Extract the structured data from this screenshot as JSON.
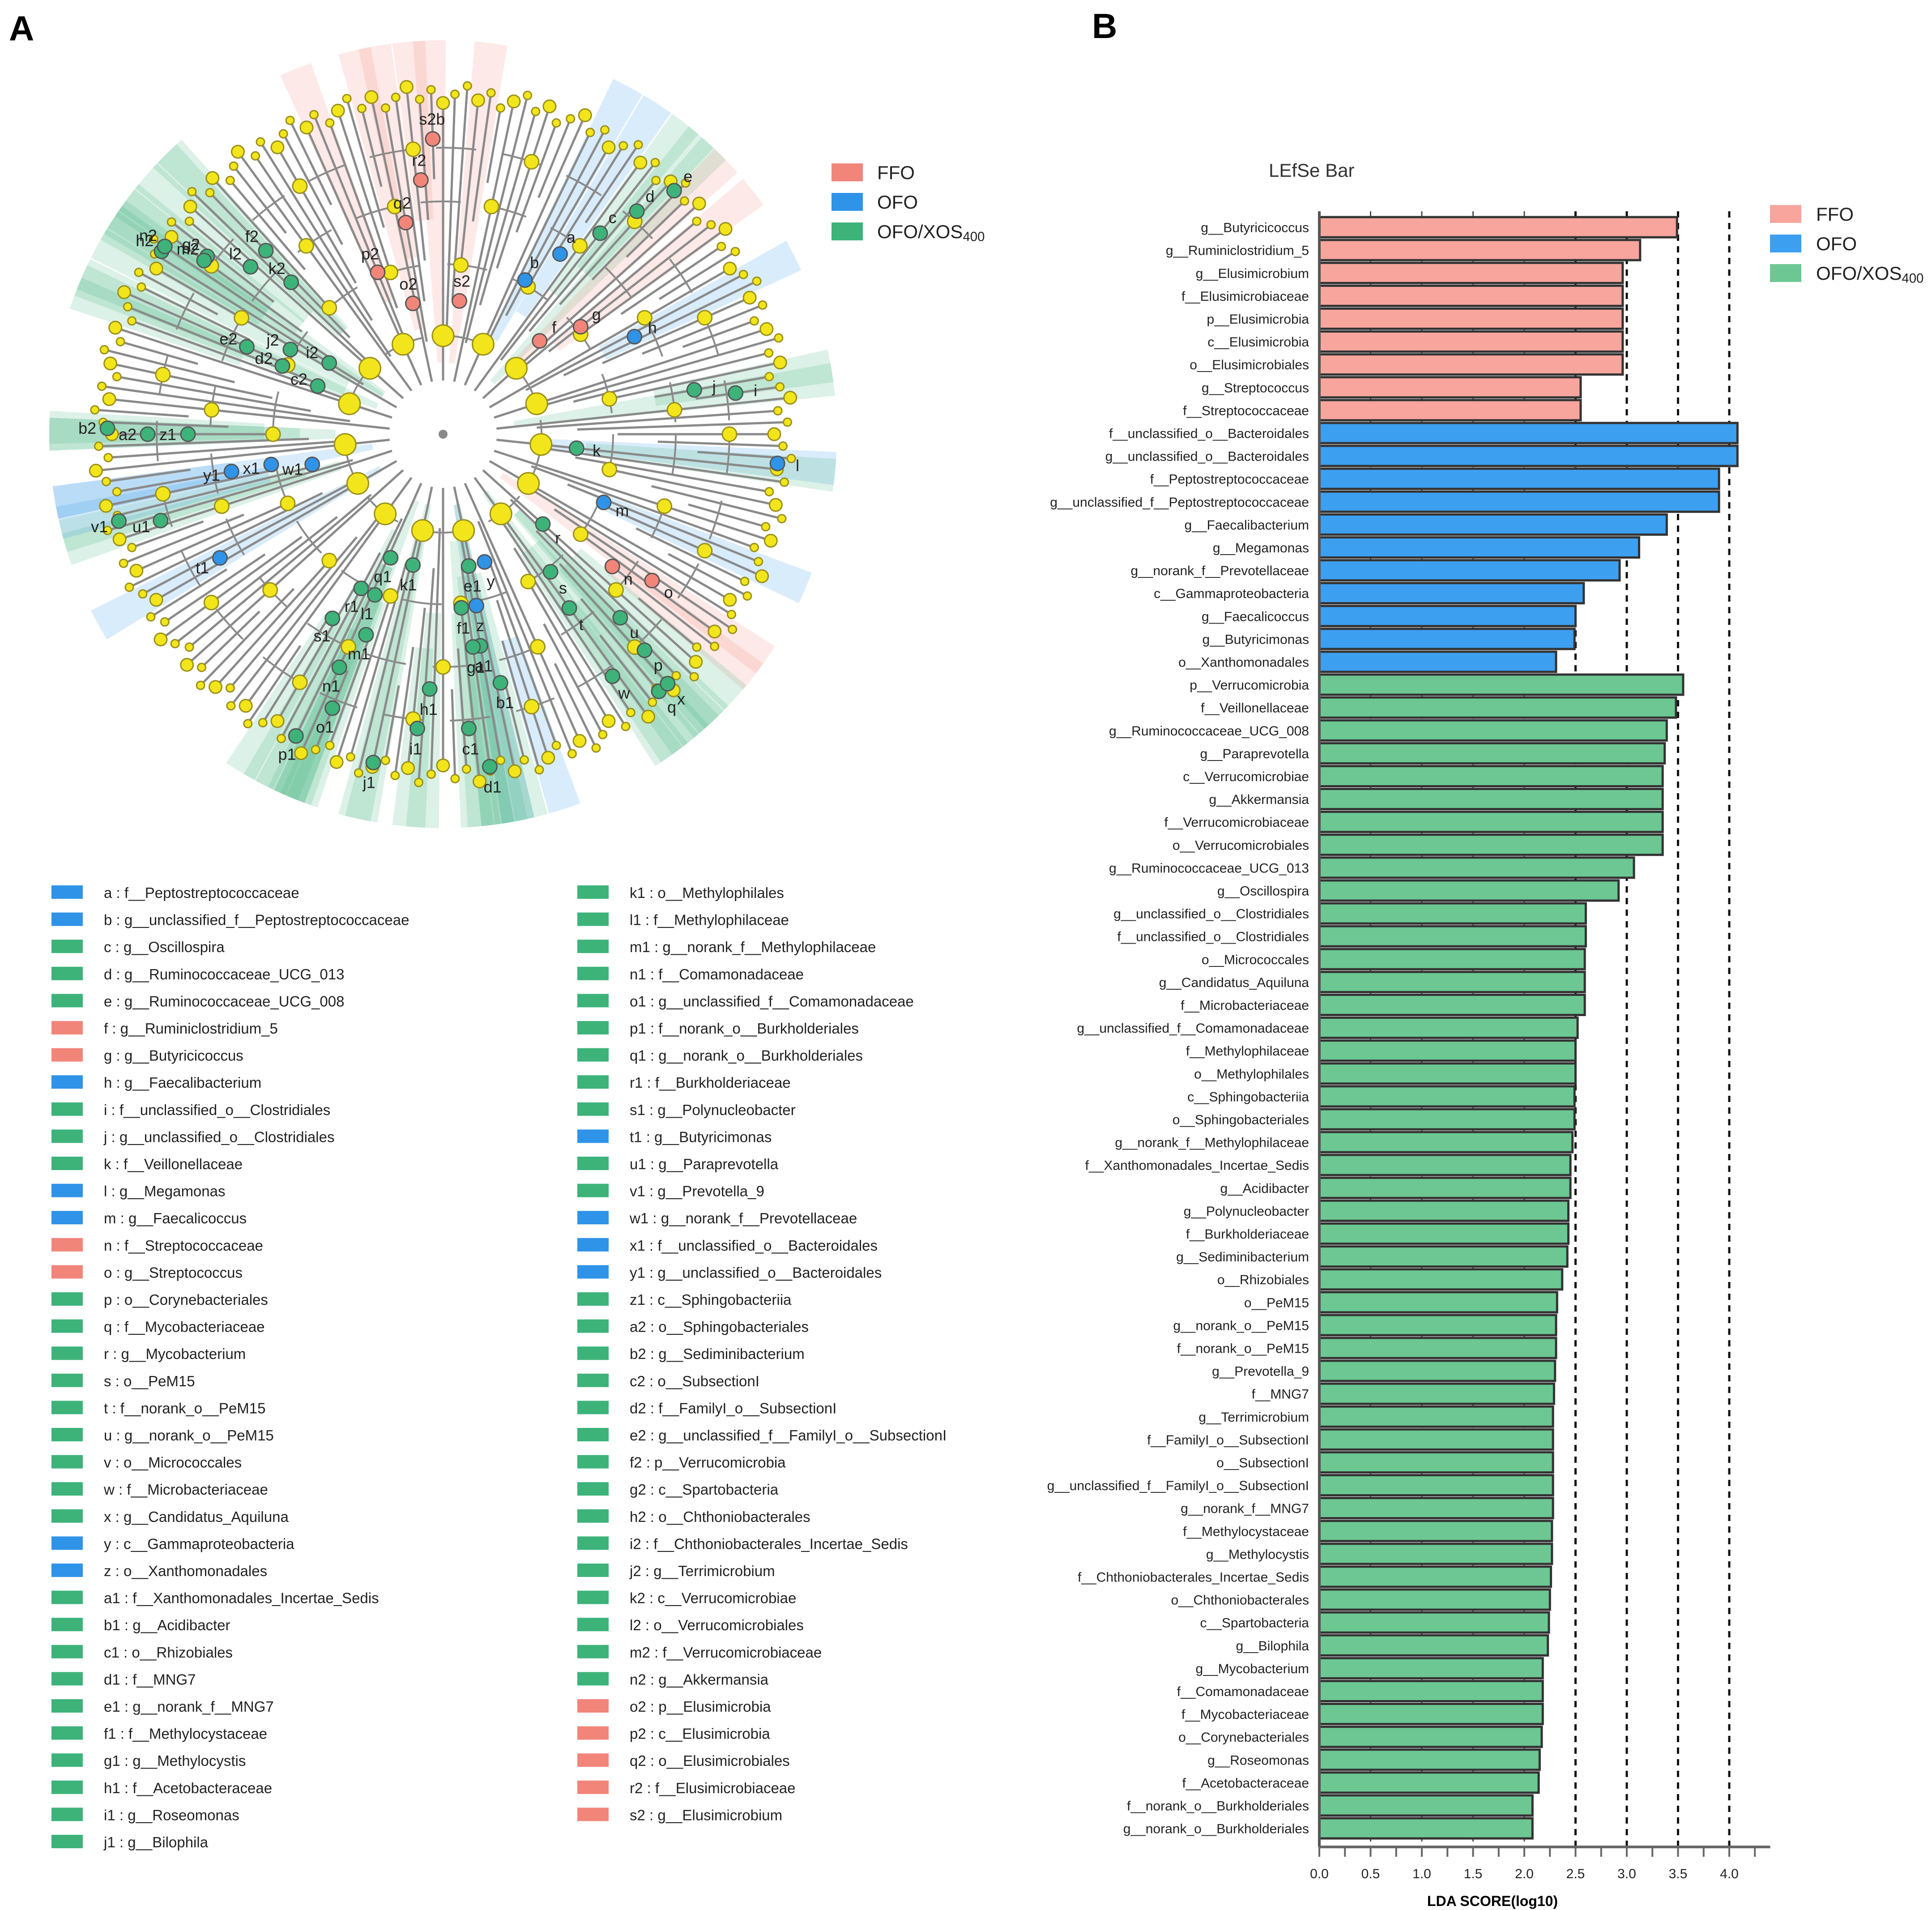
{
  "panels": {
    "a_label": "A",
    "b_label": "B"
  },
  "colors": {
    "FFO": "#f2857a",
    "OFO": "#2f93e8",
    "OFO/XOS400": "#3db37a",
    "bar_FFO": "#f7a59d",
    "bar_OFO": "#3d9ff0",
    "bar_XOS": "#6cc793",
    "node": "#f2e51b",
    "branch": "#8a8a8a"
  },
  "cladogram_legend": [
    {
      "label": "FFO",
      "group": "FFO"
    },
    {
      "label": "OFO",
      "group": "OFO"
    },
    {
      "label": "OFO/XOS",
      "sub": "400",
      "group": "OFO/XOS400"
    }
  ],
  "cladogram_clades": [
    {
      "id": "s2",
      "group": "FFO",
      "angle": -83
    },
    {
      "id": "b",
      "group": "OFO",
      "angle": -62
    },
    {
      "id": "a",
      "group": "OFO",
      "angle": -57
    },
    {
      "id": "c",
      "group": "OFO/XOS400",
      "angle": -52
    },
    {
      "id": "d",
      "group": "OFO/XOS400",
      "angle": -49
    },
    {
      "id": "e",
      "group": "OFO/XOS400",
      "angle": -46.5
    },
    {
      "id": "f",
      "group": "FFO",
      "angle": -44
    },
    {
      "id": "g",
      "group": "FFO",
      "angle": -38
    },
    {
      "id": "h",
      "group": "OFO",
      "angle": -27
    },
    {
      "id": "j",
      "group": "OFO/XOS400",
      "angle": -10
    },
    {
      "id": "i",
      "group": "OFO/XOS400",
      "angle": -8
    },
    {
      "id": "l",
      "group": "OFO",
      "angle": 5
    },
    {
      "id": "k",
      "group": "OFO/XOS400",
      "angle": 6
    },
    {
      "id": "m",
      "group": "OFO",
      "angle": 23
    },
    {
      "id": "n",
      "group": "FFO",
      "angle": 38
    },
    {
      "id": "o",
      "group": "FFO",
      "angle": 35
    },
    {
      "id": "p",
      "group": "OFO/XOS400",
      "angle": 47
    },
    {
      "id": "q",
      "group": "OFO/XOS400",
      "angle": 50
    },
    {
      "id": "r",
      "group": "OFO/XOS400",
      "angle": 42
    },
    {
      "id": "s",
      "group": "OFO/XOS400",
      "angle": 52
    },
    {
      "id": "t",
      "group": "OFO/XOS400",
      "angle": 54
    },
    {
      "id": "u",
      "group": "OFO/XOS400",
      "angle": 46
    },
    {
      "id": "w",
      "group": "OFO/XOS400",
      "angle": 55
    },
    {
      "id": "x",
      "group": "OFO/XOS400",
      "angle": 48
    },
    {
      "id": "y",
      "group": "OFO",
      "angle": 72
    },
    {
      "id": "z",
      "group": "OFO",
      "angle": 79
    },
    {
      "id": "a1",
      "group": "OFO/XOS400",
      "angle": 80
    },
    {
      "id": "b1",
      "group": "OFO/XOS400",
      "angle": 77
    },
    {
      "id": "c1",
      "group": "OFO/XOS400",
      "angle": 85
    },
    {
      "id": "d1",
      "group": "OFO/XOS400",
      "angle": 82
    },
    {
      "id": "e1",
      "group": "OFO/XOS400",
      "angle": 79
    },
    {
      "id": "f1",
      "group": "OFO/XOS400",
      "angle": 84
    },
    {
      "id": "g1",
      "group": "OFO/XOS400",
      "angle": 82
    },
    {
      "id": "h1",
      "group": "OFO/XOS400",
      "angle": 93
    },
    {
      "id": "i1",
      "group": "OFO/XOS400",
      "angle": 95
    },
    {
      "id": "j1",
      "group": "OFO/XOS400",
      "angle": 102
    },
    {
      "id": "k1",
      "group": "OFO/XOS400",
      "angle": 103
    },
    {
      "id": "l1",
      "group": "OFO/XOS400",
      "angle": 113
    },
    {
      "id": "m1",
      "group": "OFO/XOS400",
      "angle": 111
    },
    {
      "id": "n1",
      "group": "OFO/XOS400",
      "angle": 114
    },
    {
      "id": "o1",
      "group": "OFO/XOS400",
      "angle": 112
    },
    {
      "id": "p1",
      "group": "OFO/XOS400",
      "angle": 116
    },
    {
      "id": "q1",
      "group": "OFO/XOS400",
      "angle": 113
    },
    {
      "id": "r1",
      "group": "OFO/XOS400",
      "angle": 118
    },
    {
      "id": "s1",
      "group": "OFO/XOS400",
      "angle": 121
    },
    {
      "id": "t1",
      "group": "OFO",
      "angle": 151
    },
    {
      "id": "u1",
      "group": "OFO/XOS400",
      "angle": 163
    },
    {
      "id": "v1",
      "group": "OFO/XOS400",
      "angle": 165
    },
    {
      "id": "w1",
      "group": "OFO",
      "angle": 167
    },
    {
      "id": "x1",
      "group": "OFO",
      "angle": 170
    },
    {
      "id": "y1",
      "group": "OFO",
      "angle": 170
    },
    {
      "id": "z1",
      "group": "OFO/XOS400",
      "angle": 180
    },
    {
      "id": "a2",
      "group": "OFO/XOS400",
      "angle": 180
    },
    {
      "id": "b2",
      "group": "OFO/XOS400",
      "angle": 181
    },
    {
      "id": "c2",
      "group": "OFO/XOS400",
      "angle": -159
    },
    {
      "id": "d2",
      "group": "OFO/XOS400",
      "angle": -157
    },
    {
      "id": "e2",
      "group": "OFO/XOS400",
      "angle": -156
    },
    {
      "id": "f2",
      "group": "OFO/XOS400",
      "angle": -134
    },
    {
      "id": "g2",
      "group": "OFO/XOS400",
      "angle": -143
    },
    {
      "id": "h2",
      "group": "OFO/XOS400",
      "angle": -147
    },
    {
      "id": "i2",
      "group": "OFO/XOS400",
      "angle": -148
    },
    {
      "id": "j2",
      "group": "OFO/XOS400",
      "angle": -151
    },
    {
      "id": "k2",
      "group": "OFO/XOS400",
      "angle": -135
    },
    {
      "id": "l2",
      "group": "OFO/XOS400",
      "angle": -139
    },
    {
      "id": "m2",
      "group": "OFO/XOS400",
      "angle": -144
    },
    {
      "id": "n2",
      "group": "OFO/XOS400",
      "angle": -146
    },
    {
      "id": "o2",
      "group": "FFO",
      "angle": -103
    },
    {
      "id": "p2",
      "group": "FFO",
      "angle": -112
    },
    {
      "id": "q2",
      "group": "FFO",
      "angle": -100
    },
    {
      "id": "r2",
      "group": "FFO",
      "angle": -95
    },
    {
      "id": "s2b",
      "group": "FFO",
      "angle": -92
    }
  ],
  "clade_key": [
    {
      "text": "a : f__Peptostreptococcaceae",
      "group": "OFO"
    },
    {
      "text": "b : g__unclassified_f__Peptostreptococcaceae",
      "group": "OFO"
    },
    {
      "text": "c : g__Oscillospira",
      "group": "OFO/XOS400"
    },
    {
      "text": "d : g__Ruminococcaceae_UCG_013",
      "group": "OFO/XOS400"
    },
    {
      "text": "e : g__Ruminococcaceae_UCG_008",
      "group": "OFO/XOS400"
    },
    {
      "text": "f : g__Ruminiclostridium_5",
      "group": "FFO"
    },
    {
      "text": "g : g__Butyricicoccus",
      "group": "FFO"
    },
    {
      "text": "h : g__Faecalibacterium",
      "group": "OFO"
    },
    {
      "text": "i : f__unclassified_o__Clostridiales",
      "group": "OFO/XOS400"
    },
    {
      "text": "j : g__unclassified_o__Clostridiales",
      "group": "OFO/XOS400"
    },
    {
      "text": "k : f__Veillonellaceae",
      "group": "OFO/XOS400"
    },
    {
      "text": "l : g__Megamonas",
      "group": "OFO"
    },
    {
      "text": "m : g__Faecalicoccus",
      "group": "OFO"
    },
    {
      "text": "n : f__Streptococcaceae",
      "group": "FFO"
    },
    {
      "text": "o : g__Streptococcus",
      "group": "FFO"
    },
    {
      "text": "p : o__Corynebacteriales",
      "group": "OFO/XOS400"
    },
    {
      "text": "q : f__Mycobacteriaceae",
      "group": "OFO/XOS400"
    },
    {
      "text": "r : g__Mycobacterium",
      "group": "OFO/XOS400"
    },
    {
      "text": "s : o__PeM15",
      "group": "OFO/XOS400"
    },
    {
      "text": "t : f__norank_o__PeM15",
      "group": "OFO/XOS400"
    },
    {
      "text": "u : g__norank_o__PeM15",
      "group": "OFO/XOS400"
    },
    {
      "text": "v : o__Micrococcales",
      "group": "OFO/XOS400"
    },
    {
      "text": "w : f__Microbacteriaceae",
      "group": "OFO/XOS400"
    },
    {
      "text": "x : g__Candidatus_Aquiluna",
      "group": "OFO/XOS400"
    },
    {
      "text": "y : c__Gammaproteobacteria",
      "group": "OFO"
    },
    {
      "text": "z : o__Xanthomonadales",
      "group": "OFO"
    },
    {
      "text": "a1 : f__Xanthomonadales_Incertae_Sedis",
      "group": "OFO/XOS400"
    },
    {
      "text": "b1 : g__Acidibacter",
      "group": "OFO/XOS400"
    },
    {
      "text": "c1 : o__Rhizobiales",
      "group": "OFO/XOS400"
    },
    {
      "text": "d1 : f__MNG7",
      "group": "OFO/XOS400"
    },
    {
      "text": "e1 : g__norank_f__MNG7",
      "group": "OFO/XOS400"
    },
    {
      "text": "f1 : f__Methylocystaceae",
      "group": "OFO/XOS400"
    },
    {
      "text": "g1 : g__Methylocystis",
      "group": "OFO/XOS400"
    },
    {
      "text": "h1 : f__Acetobacteraceae",
      "group": "OFO/XOS400"
    },
    {
      "text": "i1 : g__Roseomonas",
      "group": "OFO/XOS400"
    },
    {
      "text": "j1 : g__Bilophila",
      "group": "OFO/XOS400"
    },
    {
      "text": "k1 : o__Methylophilales",
      "group": "OFO/XOS400"
    },
    {
      "text": "l1 : f__Methylophilaceae",
      "group": "OFO/XOS400"
    },
    {
      "text": "m1 : g__norank_f__Methylophilaceae",
      "group": "OFO/XOS400"
    },
    {
      "text": "n1 : f__Comamonadaceae",
      "group": "OFO/XOS400"
    },
    {
      "text": "o1 : g__unclassified_f__Comamonadaceae",
      "group": "OFO/XOS400"
    },
    {
      "text": "p1 : f__norank_o__Burkholderiales",
      "group": "OFO/XOS400"
    },
    {
      "text": "q1 : g__norank_o__Burkholderiales",
      "group": "OFO/XOS400"
    },
    {
      "text": "r1 : f__Burkholderiaceae",
      "group": "OFO/XOS400"
    },
    {
      "text": "s1 : g__Polynucleobacter",
      "group": "OFO/XOS400"
    },
    {
      "text": "t1 : g__Butyricimonas",
      "group": "OFO"
    },
    {
      "text": "u1 : g__Paraprevotella",
      "group": "OFO/XOS400"
    },
    {
      "text": "v1 : g__Prevotella_9",
      "group": "OFO/XOS400"
    },
    {
      "text": "w1 : g__norank_f__Prevotellaceae",
      "group": "OFO"
    },
    {
      "text": "x1 : f__unclassified_o__Bacteroidales",
      "group": "OFO"
    },
    {
      "text": "y1 : g__unclassified_o__Bacteroidales",
      "group": "OFO"
    },
    {
      "text": "z1 : c__Sphingobacteriia",
      "group": "OFO/XOS400"
    },
    {
      "text": "a2 : o__Sphingobacteriales",
      "group": "OFO/XOS400"
    },
    {
      "text": "b2 : g__Sediminibacterium",
      "group": "OFO/XOS400"
    },
    {
      "text": "c2 : o__SubsectionI",
      "group": "OFO/XOS400"
    },
    {
      "text": "d2 : f__FamilyI_o__SubsectionI",
      "group": "OFO/XOS400"
    },
    {
      "text": "e2 : g__unclassified_f__FamilyI_o__SubsectionI",
      "group": "OFO/XOS400"
    },
    {
      "text": "f2 : p__Verrucomicrobia",
      "group": "OFO/XOS400"
    },
    {
      "text": "g2 : c__Spartobacteria",
      "group": "OFO/XOS400"
    },
    {
      "text": "h2 : o__Chthoniobacterales",
      "group": "OFO/XOS400"
    },
    {
      "text": "i2 : f__Chthoniobacterales_Incertae_Sedis",
      "group": "OFO/XOS400"
    },
    {
      "text": "j2 : g__Terrimicrobium",
      "group": "OFO/XOS400"
    },
    {
      "text": "k2 : c__Verrucomicrobiae",
      "group": "OFO/XOS400"
    },
    {
      "text": "l2 : o__Verrucomicrobiales",
      "group": "OFO/XOS400"
    },
    {
      "text": "m2 : f__Verrucomicrobiaceae",
      "group": "OFO/XOS400"
    },
    {
      "text": "n2 : g__Akkermansia",
      "group": "OFO/XOS400"
    },
    {
      "text": "o2 : p__Elusimicrobia",
      "group": "FFO"
    },
    {
      "text": "p2 : c__Elusimicrobia",
      "group": "FFO"
    },
    {
      "text": "q2 : o__Elusimicrobiales",
      "group": "FFO"
    },
    {
      "text": "r2 : f__Elusimicrobiaceae",
      "group": "FFO"
    },
    {
      "text": "s2 : g__Elusimicrobium",
      "group": "FFO"
    }
  ],
  "chart_data": {
    "type": "bar",
    "orientation": "horizontal",
    "title": "LEfSe Bar",
    "xlabel": "LDA SCORE(log10)",
    "xlim": [
      0,
      4.4
    ],
    "xticks": [
      "0.0",
      "0.5",
      "1.0",
      "1.5",
      "2.0",
      "2.5",
      "3.0",
      "3.5",
      "4.0"
    ],
    "xtick_values": [
      0,
      0.5,
      1,
      1.5,
      2,
      2.5,
      3,
      3.5,
      4
    ],
    "dashed_gridlines": [
      0.5,
      1,
      1.5,
      2,
      2.5,
      3,
      3.5,
      4
    ],
    "legend": [
      {
        "label": "FFO",
        "group": "FFO"
      },
      {
        "label": "OFO",
        "group": "OFO"
      },
      {
        "label": "OFO/XOS",
        "sub": "400",
        "group": "OFO/XOS400"
      }
    ],
    "series": [
      {
        "name": "FFO",
        "bars": [
          {
            "label": "g__Butyricicoccus",
            "value": 3.49
          },
          {
            "label": "g__Ruminiclostridium_5",
            "value": 3.13
          },
          {
            "label": "g__Elusimicrobium",
            "value": 2.96
          },
          {
            "label": "f__Elusimicrobiaceae",
            "value": 2.96
          },
          {
            "label": "p__Elusimicrobia",
            "value": 2.96
          },
          {
            "label": "c__Elusimicrobia",
            "value": 2.96
          },
          {
            "label": "o__Elusimicrobiales",
            "value": 2.96
          },
          {
            "label": "g__Streptococcus",
            "value": 2.55
          },
          {
            "label": "f__Streptococcaceae",
            "value": 2.55
          }
        ]
      },
      {
        "name": "OFO",
        "bars": [
          {
            "label": "f__unclassified_o__Bacteroidales",
            "value": 4.08
          },
          {
            "label": "g__unclassified_o__Bacteroidales",
            "value": 4.08
          },
          {
            "label": "f__Peptostreptococcaceae",
            "value": 3.9
          },
          {
            "label": "g__unclassified_f__Peptostreptococcaceae",
            "value": 3.9
          },
          {
            "label": "g__Faecalibacterium",
            "value": 3.39
          },
          {
            "label": "g__Megamonas",
            "value": 3.12
          },
          {
            "label": "g__norank_f__Prevotellaceae",
            "value": 2.93
          },
          {
            "label": "c__Gammaproteobacteria",
            "value": 2.58
          },
          {
            "label": "g__Faecalicoccus",
            "value": 2.5
          },
          {
            "label": "g__Butyricimonas",
            "value": 2.49
          },
          {
            "label": "o__Xanthomonadales",
            "value": 2.31
          }
        ]
      },
      {
        "name": "OFO/XOS400",
        "bars": [
          {
            "label": "p__Verrucomicrobia",
            "value": 3.55
          },
          {
            "label": "f__Veillonellaceae",
            "value": 3.48
          },
          {
            "label": "g__Ruminococcaceae_UCG_008",
            "value": 3.39
          },
          {
            "label": "g__Paraprevotella",
            "value": 3.37
          },
          {
            "label": "c__Verrucomicrobiae",
            "value": 3.35
          },
          {
            "label": "g__Akkermansia",
            "value": 3.35
          },
          {
            "label": "f__Verrucomicrobiaceae",
            "value": 3.35
          },
          {
            "label": "o__Verrucomicrobiales",
            "value": 3.35
          },
          {
            "label": "g__Ruminococcaceae_UCG_013",
            "value": 3.07
          },
          {
            "label": "g__Oscillospira",
            "value": 2.92
          },
          {
            "label": "g__unclassified_o__Clostridiales",
            "value": 2.6
          },
          {
            "label": "f__unclassified_o__Clostridiales",
            "value": 2.6
          },
          {
            "label": "o__Micrococcales",
            "value": 2.59
          },
          {
            "label": "g__Candidatus_Aquiluna",
            "value": 2.59
          },
          {
            "label": "f__Microbacteriaceae",
            "value": 2.59
          },
          {
            "label": "g__unclassified_f__Comamonadaceae",
            "value": 2.52
          },
          {
            "label": "f__Methylophilaceae",
            "value": 2.5
          },
          {
            "label": "o__Methylophilales",
            "value": 2.5
          },
          {
            "label": "c__Sphingobacteriia",
            "value": 2.49
          },
          {
            "label": "o__Sphingobacteriales",
            "value": 2.49
          },
          {
            "label": "g__norank_f__Methylophilaceae",
            "value": 2.47
          },
          {
            "label": "f__Xanthomonadales_Incertae_Sedis",
            "value": 2.45
          },
          {
            "label": "g__Acidibacter",
            "value": 2.45
          },
          {
            "label": "g__Polynucleobacter",
            "value": 2.43
          },
          {
            "label": "f__Burkholderiaceae",
            "value": 2.43
          },
          {
            "label": "g__Sediminibacterium",
            "value": 2.42
          },
          {
            "label": "o__Rhizobiales",
            "value": 2.37
          },
          {
            "label": "o__PeM15",
            "value": 2.32
          },
          {
            "label": "g__norank_o__PeM15",
            "value": 2.31
          },
          {
            "label": "f__norank_o__PeM15",
            "value": 2.31
          },
          {
            "label": "g__Prevotella_9",
            "value": 2.3
          },
          {
            "label": "f__MNG7",
            "value": 2.29
          },
          {
            "label": "g__Terrimicrobium",
            "value": 2.28
          },
          {
            "label": "f__FamilyI_o__SubsectionI",
            "value": 2.28
          },
          {
            "label": "o__SubsectionI",
            "value": 2.28
          },
          {
            "label": "g__unclassified_f__FamilyI_o__SubsectionI",
            "value": 2.28
          },
          {
            "label": "g__norank_f__MNG7",
            "value": 2.28
          },
          {
            "label": "f__Methylocystaceae",
            "value": 2.27
          },
          {
            "label": "g__Methylocystis",
            "value": 2.27
          },
          {
            "label": "f__Chthoniobacterales_Incertae_Sedis",
            "value": 2.26
          },
          {
            "label": "o__Chthoniobacterales",
            "value": 2.25
          },
          {
            "label": "c__Spartobacteria",
            "value": 2.24
          },
          {
            "label": "g__Bilophila",
            "value": 2.23
          },
          {
            "label": "g__Mycobacterium",
            "value": 2.18
          },
          {
            "label": "f__Comamonadaceae",
            "value": 2.18
          },
          {
            "label": "f__Mycobacteriaceae",
            "value": 2.18
          },
          {
            "label": "o__Corynebacteriales",
            "value": 2.17
          },
          {
            "label": "g__Roseomonas",
            "value": 2.15
          },
          {
            "label": "f__Acetobacteraceae",
            "value": 2.14
          },
          {
            "label": "f__norank_o__Burkholderiales",
            "value": 2.08
          },
          {
            "label": "g__norank_o__Burkholderiales",
            "value": 2.08
          }
        ]
      }
    ]
  }
}
